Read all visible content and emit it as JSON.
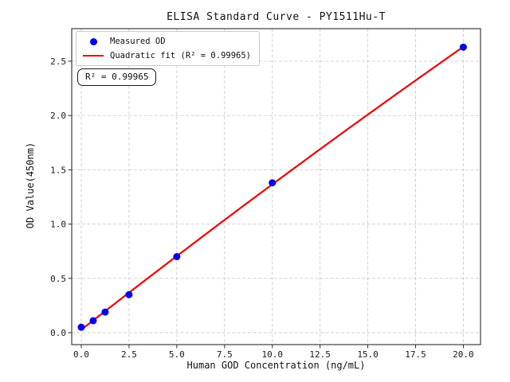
{
  "annotation": "R² = 0.99965",
  "legend": {
    "position": "upper left",
    "entries": [
      {
        "label": "Measured OD",
        "marker": "dot",
        "color": "#0000ee"
      },
      {
        "label": "Quadratic fit (R² = 0.99965)",
        "marker": "line",
        "color": "#ee0000"
      }
    ]
  },
  "chart_data": {
    "type": "scatter",
    "title": "ELISA Standard Curve - PY1511Hu-T",
    "xlabel": "Human GOD Concentration (ng/mL)",
    "ylabel": "OD Value(450nm)",
    "grid": true,
    "legend_position": "upper left",
    "xlim": [
      -0.5,
      20.9
    ],
    "ylim": [
      -0.11,
      2.8
    ],
    "x_ticks": {
      "values": [
        0,
        2.5,
        5,
        7.5,
        10,
        12.5,
        15,
        17.5,
        20
      ],
      "labels": [
        "0.0",
        "2.5",
        "5.0",
        "7.5",
        "10.0",
        "12.5",
        "15.0",
        "17.5",
        "20.0"
      ]
    },
    "y_ticks": {
      "values": [
        0,
        0.5,
        1,
        1.5,
        2,
        2.5
      ],
      "labels": [
        "0.0",
        "0.5",
        "1.0",
        "1.5",
        "2.0",
        "2.5"
      ]
    },
    "series": [
      {
        "name": "Measured OD",
        "type": "scatter",
        "color": "#0000ee",
        "x": [
          0,
          0.625,
          1.25,
          2.5,
          5,
          10,
          20
        ],
        "y": [
          0.05,
          0.11,
          0.19,
          0.35,
          0.7,
          1.38,
          2.63
        ]
      },
      {
        "name": "Quadratic fit (R² = 0.99965)",
        "type": "quadratic-fit",
        "color": "#ee0000",
        "r_squared": 0.99965
      }
    ]
  },
  "colors": {
    "grid": "#cccccc",
    "frame": "#2a2a2a",
    "background": "#ffffff",
    "point": "#0000ee",
    "fit_line": "#ee0000"
  }
}
